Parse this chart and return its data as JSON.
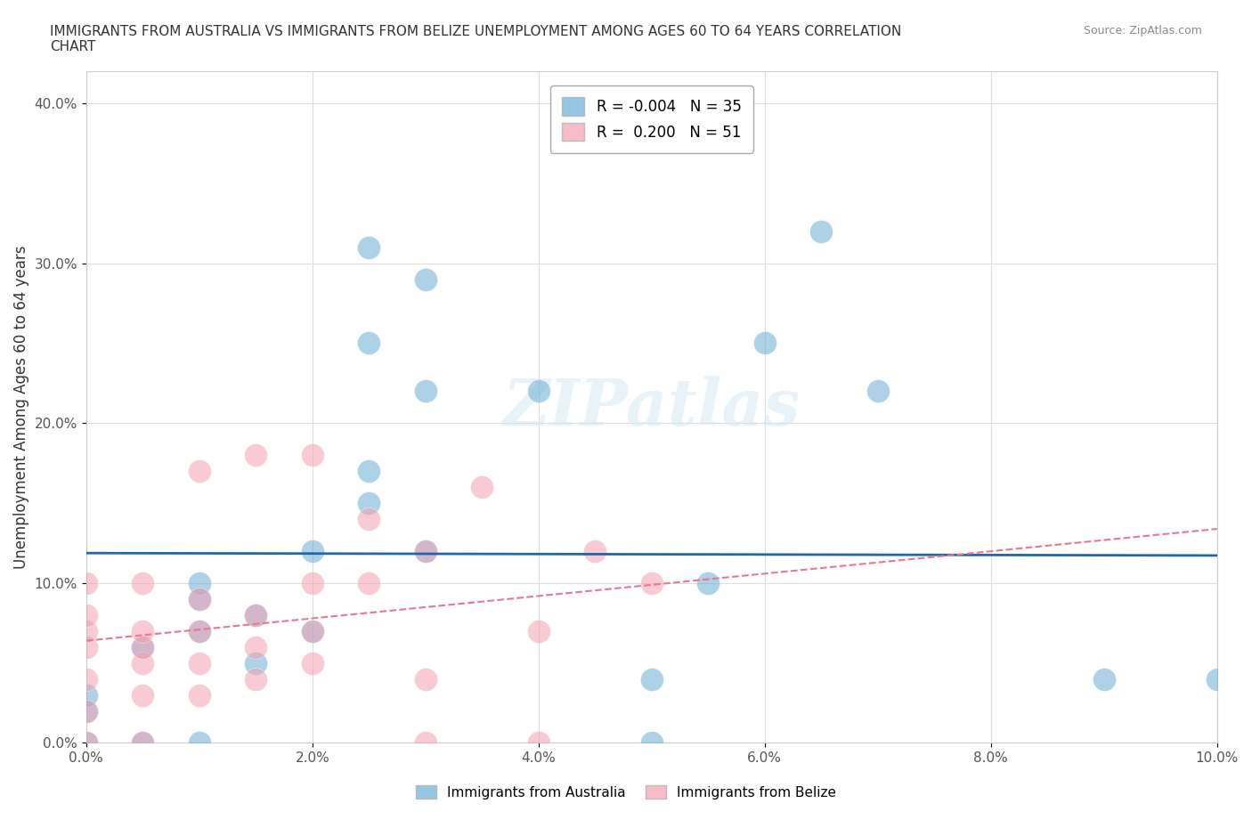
{
  "title": "IMMIGRANTS FROM AUSTRALIA VS IMMIGRANTS FROM BELIZE UNEMPLOYMENT AMONG AGES 60 TO 64 YEARS CORRELATION\nCHART",
  "source": "Source: ZipAtlas.com",
  "xlabel": "",
  "ylabel": "Unemployment Among Ages 60 to 64 years",
  "xlim": [
    0.0,
    0.1
  ],
  "ylim": [
    0.0,
    0.42
  ],
  "xticks": [
    0.0,
    0.02,
    0.04,
    0.06,
    0.08,
    0.1
  ],
  "yticks": [
    0.0,
    0.1,
    0.2,
    0.3,
    0.4
  ],
  "australia_color": "#6aaed6",
  "belize_color": "#f4a0b0",
  "australia_R": -0.004,
  "australia_N": 35,
  "belize_R": 0.2,
  "belize_N": 51,
  "watermark": "ZIPatlas",
  "australia_x": [
    0.0,
    0.0,
    0.0,
    0.005,
    0.005,
    0.01,
    0.01,
    0.01,
    0.01,
    0.015,
    0.015,
    0.02,
    0.02,
    0.025,
    0.025,
    0.025,
    0.025,
    0.03,
    0.03,
    0.03,
    0.04,
    0.05,
    0.05,
    0.055,
    0.06,
    0.065,
    0.07,
    0.09,
    0.1
  ],
  "australia_y": [
    0.0,
    0.02,
    0.03,
    0.0,
    0.06,
    0.0,
    0.07,
    0.09,
    0.1,
    0.05,
    0.08,
    0.07,
    0.12,
    0.15,
    0.17,
    0.25,
    0.31,
    0.12,
    0.22,
    0.29,
    0.22,
    0.0,
    0.04,
    0.1,
    0.25,
    0.32,
    0.22,
    0.04,
    0.04
  ],
  "belize_x": [
    0.0,
    0.0,
    0.0,
    0.0,
    0.0,
    0.0,
    0.0,
    0.005,
    0.005,
    0.005,
    0.005,
    0.005,
    0.005,
    0.01,
    0.01,
    0.01,
    0.01,
    0.01,
    0.015,
    0.015,
    0.015,
    0.015,
    0.02,
    0.02,
    0.02,
    0.02,
    0.025,
    0.025,
    0.03,
    0.03,
    0.03,
    0.035,
    0.04,
    0.04,
    0.045,
    0.05
  ],
  "belize_y": [
    0.0,
    0.02,
    0.04,
    0.06,
    0.07,
    0.08,
    0.1,
    0.0,
    0.03,
    0.05,
    0.06,
    0.07,
    0.1,
    0.03,
    0.05,
    0.07,
    0.09,
    0.17,
    0.04,
    0.06,
    0.08,
    0.18,
    0.05,
    0.07,
    0.1,
    0.18,
    0.1,
    0.14,
    0.0,
    0.04,
    0.12,
    0.16,
    0.0,
    0.07,
    0.12,
    0.1
  ]
}
